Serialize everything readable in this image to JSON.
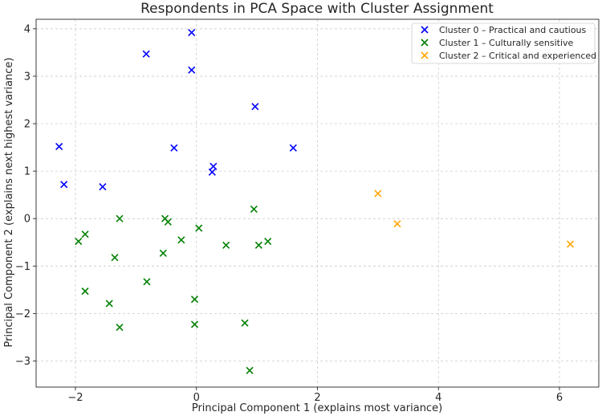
{
  "chart_data": {
    "type": "scatter",
    "title": "Respondents in PCA Space with Cluster Assignment",
    "xlabel": "Principal Component 1 (explains most variance)",
    "ylabel": "Principal Component 2 (explains next highest variance)",
    "xlim": [
      -2.65,
      6.65
    ],
    "ylim": [
      -3.55,
      4.2
    ],
    "xticks": [
      -2,
      0,
      2,
      4,
      6
    ],
    "yticks": [
      -3,
      -2,
      -1,
      0,
      1,
      2,
      3,
      4
    ],
    "xtick_labels": [
      "−2",
      "0",
      "2",
      "4",
      "6"
    ],
    "ytick_labels": [
      "−3",
      "−2",
      "−1",
      "0",
      "1",
      "2",
      "3",
      "4"
    ],
    "grid": true,
    "legend_position": "top-right",
    "marker": "x",
    "series": [
      {
        "name": "Cluster 0 – Practical and cautious",
        "color": "#0000ff",
        "points": [
          [
            -0.08,
            3.92
          ],
          [
            -0.83,
            3.47
          ],
          [
            -0.08,
            3.13
          ],
          [
            0.97,
            2.36
          ],
          [
            -2.27,
            1.52
          ],
          [
            -0.37,
            1.49
          ],
          [
            1.6,
            1.49
          ],
          [
            0.28,
            1.1
          ],
          [
            0.26,
            0.98
          ],
          [
            -2.19,
            0.72
          ],
          [
            -1.55,
            0.67
          ]
        ]
      },
      {
        "name": "Cluster 1 – Culturally sensitive",
        "color": "#008000",
        "points": [
          [
            -1.27,
            0.0
          ],
          [
            -0.52,
            0.0
          ],
          [
            -0.47,
            -0.07
          ],
          [
            0.95,
            0.2
          ],
          [
            0.04,
            -0.2
          ],
          [
            -1.84,
            -0.33
          ],
          [
            -1.95,
            -0.48
          ],
          [
            -0.25,
            -0.45
          ],
          [
            0.49,
            -0.56
          ],
          [
            1.03,
            -0.56
          ],
          [
            1.18,
            -0.48
          ],
          [
            -0.55,
            -0.73
          ],
          [
            -1.35,
            -0.82
          ],
          [
            -0.82,
            -1.33
          ],
          [
            -1.84,
            -1.53
          ],
          [
            -0.03,
            -1.7
          ],
          [
            -1.44,
            -1.79
          ],
          [
            -1.27,
            -2.29
          ],
          [
            -0.03,
            -2.23
          ],
          [
            0.8,
            -2.2
          ],
          [
            0.88,
            -3.2
          ]
        ]
      },
      {
        "name": "Cluster 2 – Critical and experienced",
        "color": "#ffa500",
        "points": [
          [
            3.0,
            0.53
          ],
          [
            3.32,
            -0.11
          ],
          [
            6.18,
            -0.54
          ]
        ]
      }
    ]
  }
}
